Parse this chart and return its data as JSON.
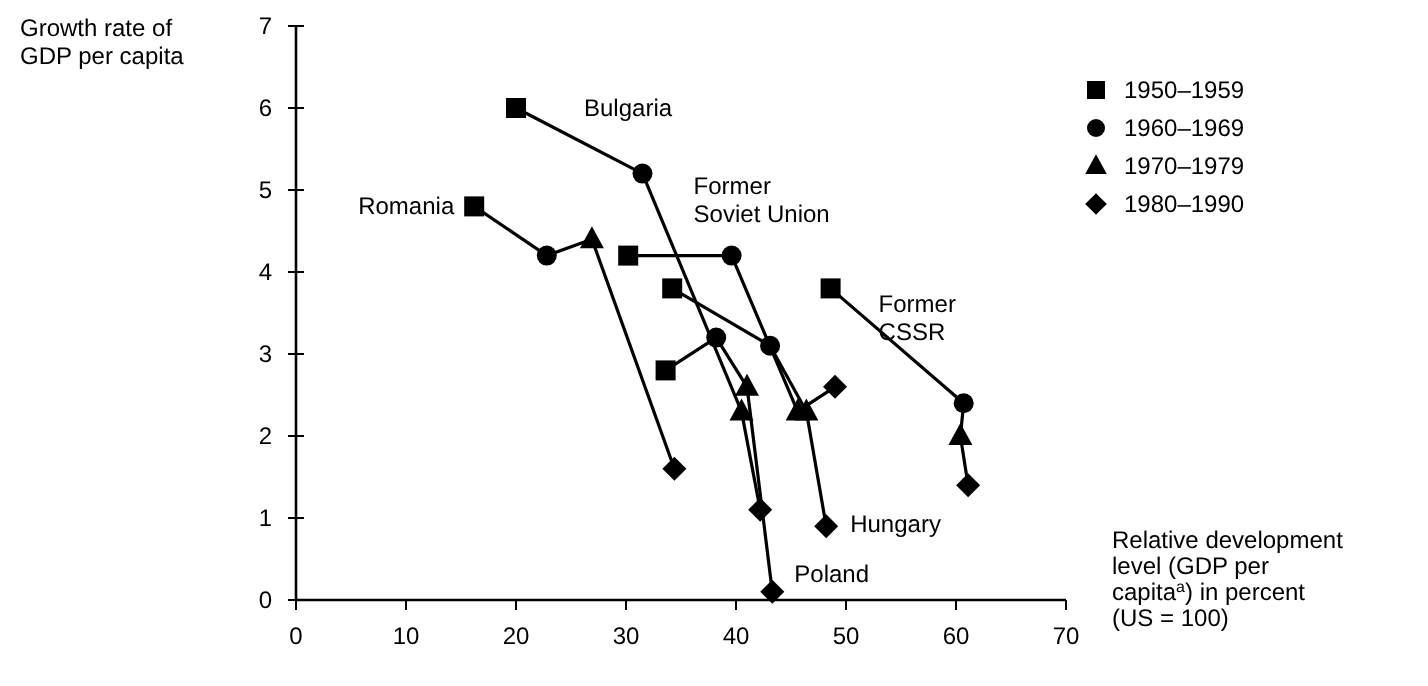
{
  "chart_data": {
    "type": "scatter",
    "ylabel": "Growth rate of\nGDP per capita",
    "xlabel": "Relative development\nlevel (GDP per\ncapita$^{a}$) in percent\n(US = 100)",
    "xlim": [
      0,
      70
    ],
    "xticks": [
      0,
      10,
      20,
      30,
      40,
      50,
      60,
      70
    ],
    "ylim": [
      0,
      7
    ],
    "yticks": [
      0,
      1,
      2,
      3,
      4,
      5,
      6,
      7
    ],
    "grid": false,
    "legend": "top right",
    "series": [
      {
        "type": "line",
        "name": "Romania",
        "marker": "none",
        "color": "#000000",
        "x": [
          16.2,
          22.8,
          26.9,
          34.4
        ],
        "values": [
          4.8,
          4.2,
          4.4,
          1.6
        ]
      },
      {
        "type": "line",
        "name": "Bulgaria",
        "marker": "none",
        "color": "#000000",
        "x": [
          20,
          31.5,
          40.5,
          42.2
        ],
        "values": [
          6.0,
          5.2,
          2.3,
          1.1
        ]
      },
      {
        "type": "line",
        "name": "Former\nSoviet Union",
        "marker": "none",
        "color": "#000000",
        "x": [
          30.2,
          39.6,
          45.6,
          49
        ],
        "values": [
          4.2,
          4.2,
          2.3,
          2.6
        ]
      },
      {
        "type": "line",
        "name": "Hungary",
        "marker": "none",
        "color": "#000000",
        "x": [
          34.2,
          43.1,
          46.4,
          48.2
        ],
        "values": [
          3.8,
          3.1,
          2.3,
          0.9
        ]
      },
      {
        "type": "line",
        "name": "Poland",
        "marker": "none",
        "color": "#000000",
        "x": [
          33.6,
          38.2,
          41,
          43.3
        ],
        "values": [
          2.8,
          3.2,
          2.6,
          0.1
        ]
      },
      {
        "type": "line",
        "name": "Former\nCSSR",
        "marker": "none",
        "color": "#000000",
        "x": [
          48.6,
          60.7,
          60.4,
          61.1
        ],
        "values": [
          3.8,
          2.4,
          2.0,
          1.4
        ]
      },
      {
        "name": "1950–1959",
        "marker": "square",
        "color": "#000000",
        "x": [
          16.2,
          20,
          30.2,
          34.2,
          33.6,
          48.6
        ],
        "values": [
          4.8,
          6.0,
          4.2,
          3.8,
          2.8,
          3.8
        ]
      },
      {
        "name": "1960–1969",
        "marker": "circle",
        "color": "#000000",
        "x": [
          22.8,
          31.5,
          39.6,
          43.1,
          38.2,
          60.7
        ],
        "values": [
          4.2,
          5.2,
          4.2,
          3.1,
          3.2,
          2.4
        ]
      },
      {
        "name": "1970–1979",
        "marker": "triangle",
        "color": "#000000",
        "x": [
          26.9,
          40.5,
          45.6,
          46.4,
          41,
          60.4
        ],
        "values": [
          4.4,
          2.3,
          2.3,
          2.3,
          2.6,
          2.0
        ]
      },
      {
        "name": "1980–1990",
        "marker": "diamond",
        "color": "#000000",
        "x": [
          34.4,
          42.2,
          49,
          48.2,
          43.3,
          61.1
        ],
        "values": [
          1.6,
          1.1,
          2.6,
          0.9,
          0.1,
          1.4
        ]
      }
    ]
  }
}
